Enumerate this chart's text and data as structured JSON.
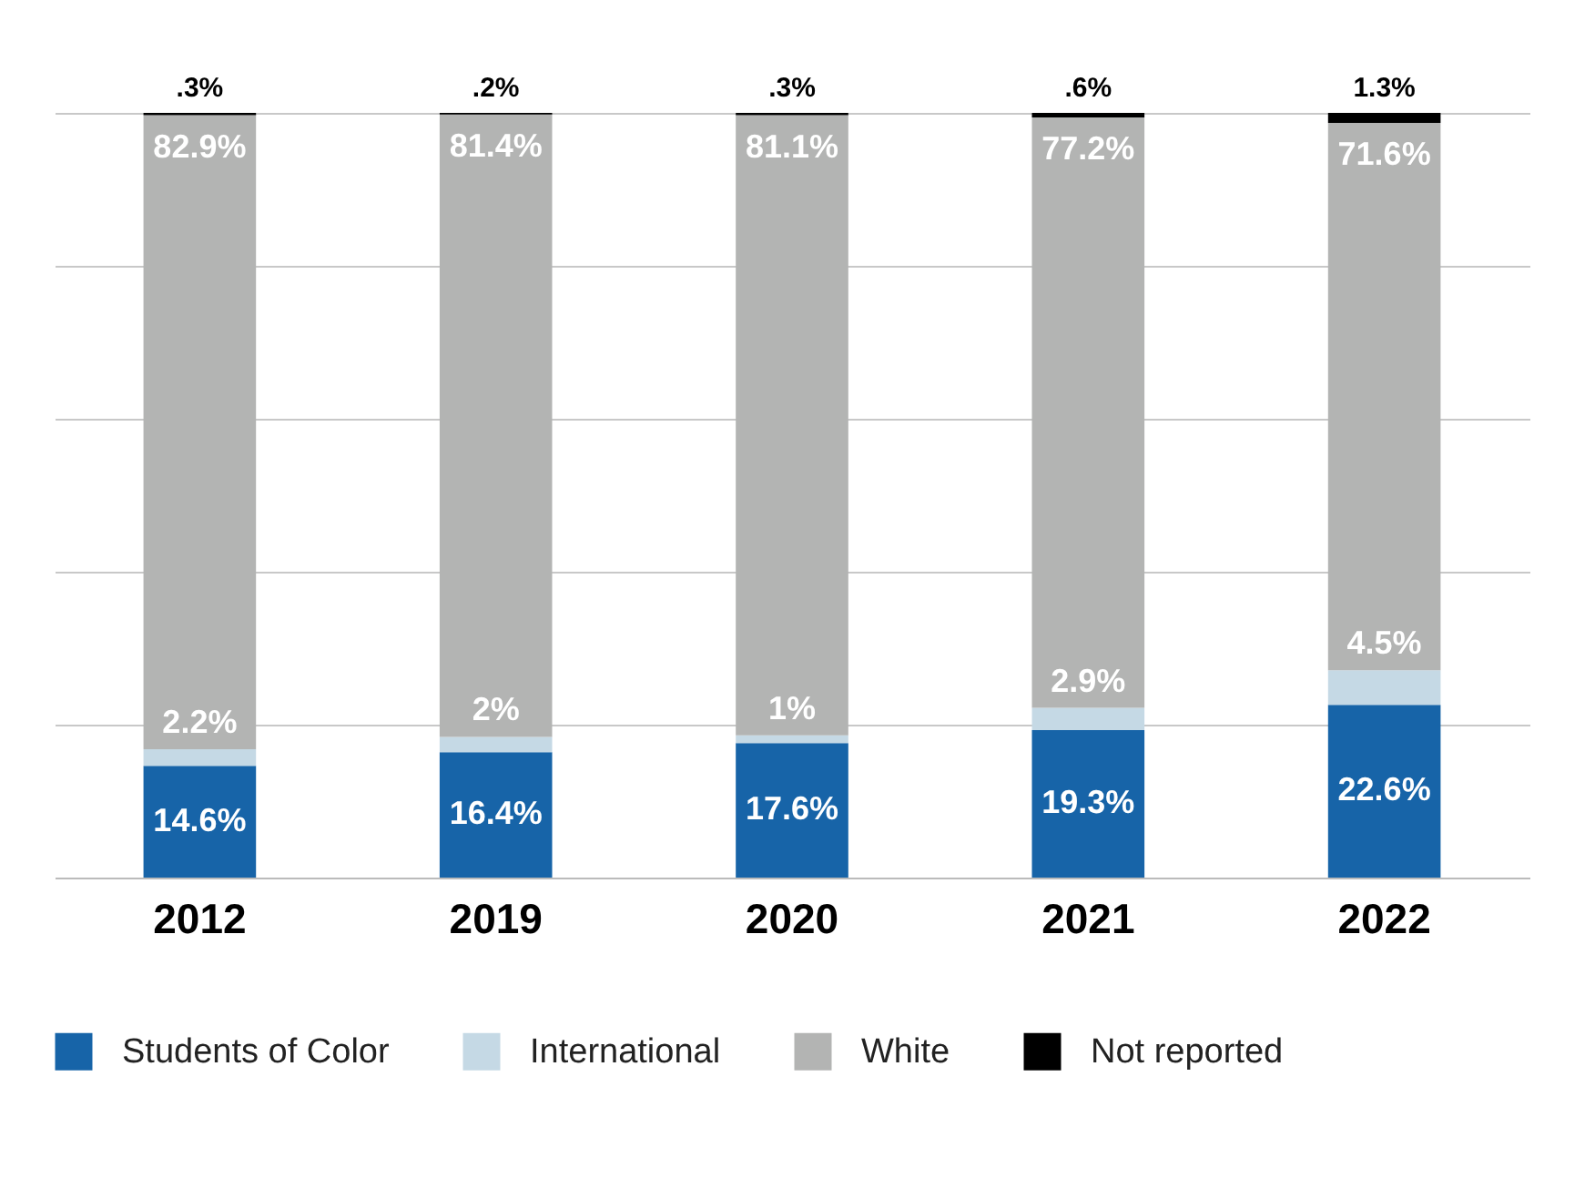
{
  "chart_data": {
    "type": "bar",
    "stacked": true,
    "categories": [
      "2012",
      "2019",
      "2020",
      "2021",
      "2022"
    ],
    "series": [
      {
        "name": "Students of Color",
        "color": "#1764a8",
        "values": [
          14.6,
          16.4,
          17.6,
          19.3,
          22.6
        ],
        "value_labels": [
          "14.6%",
          "16.4%",
          "17.6%",
          "19.3%",
          "22.6%"
        ]
      },
      {
        "name": "International",
        "color": "#c5d9e5",
        "values": [
          2.2,
          2,
          1,
          2.9,
          4.5
        ],
        "value_labels": [
          "2.2%",
          "2%",
          "1%",
          "2.9%",
          "4.5%"
        ]
      },
      {
        "name": "White",
        "color": "#b3b4b3",
        "values": [
          82.9,
          81.4,
          81.1,
          77.2,
          71.6
        ],
        "value_labels": [
          "82.9%",
          "81.4%",
          "81.1%",
          "77.2%",
          "71.6%"
        ]
      },
      {
        "name": "Not reported",
        "color": "#000000",
        "values": [
          0.3,
          0.2,
          0.3,
          0.6,
          1.3
        ],
        "value_labels": [
          ".3%",
          ".2%",
          ".3%",
          ".6%",
          "1.3%"
        ]
      }
    ],
    "ylim": [
      0,
      100
    ],
    "yticks": [
      0,
      20,
      40,
      60,
      80,
      100
    ],
    "tick_labels": "x",
    "grid": "y",
    "legend": "bottom"
  }
}
